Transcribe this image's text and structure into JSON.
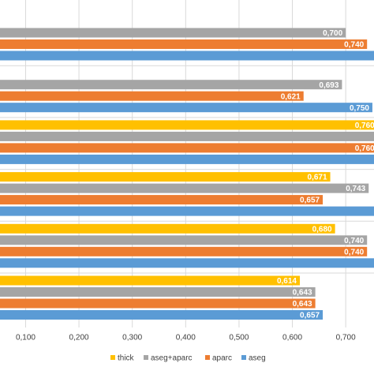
{
  "chart_data": {
    "type": "hbar",
    "categories": [
      null,
      null,
      null,
      null,
      null,
      null
    ],
    "series": [
      {
        "name": "thick",
        "color": "#ffc000",
        "values": [
          null,
          null,
          0.76,
          0.671,
          0.68,
          0.614
        ],
        "value_labels": [
          null,
          null,
          "0,760",
          "0,671",
          "0,680",
          "0,614"
        ]
      },
      {
        "name": "aseg+aparc",
        "color": "#a5a5a5",
        "values": [
          0.7,
          0.693,
          0.78,
          0.743,
          0.74,
          0.643
        ],
        "value_labels": [
          "0,700",
          "0,693",
          null,
          "0,743",
          "0,740",
          "0,643"
        ]
      },
      {
        "name": "aparc",
        "color": "#ed7d31",
        "values": [
          0.74,
          0.621,
          0.76,
          0.657,
          0.74,
          0.643
        ],
        "value_labels": [
          "0,740",
          "0,621",
          "0,760",
          "0,657",
          "0,740",
          "0,643"
        ]
      },
      {
        "name": "aseg",
        "color": "#5b9bd5",
        "values": [
          0.78,
          0.75,
          0.78,
          0.78,
          0.78,
          0.657
        ],
        "value_labels": [
          null,
          "0,750",
          null,
          null,
          null,
          "0,657"
        ]
      }
    ],
    "xlim": [
      0.052,
      0.753
    ],
    "xticks": [
      {
        "value": 0.1,
        "label": "0,100"
      },
      {
        "value": 0.2,
        "label": "0,200"
      },
      {
        "value": 0.3,
        "label": "0,300"
      },
      {
        "value": 0.4,
        "label": "0,400"
      },
      {
        "value": 0.5,
        "label": "0,500"
      },
      {
        "value": 0.6,
        "label": "0,600"
      },
      {
        "value": 0.7,
        "label": "0,700"
      }
    ],
    "grid": true,
    "legend": "bottom"
  }
}
